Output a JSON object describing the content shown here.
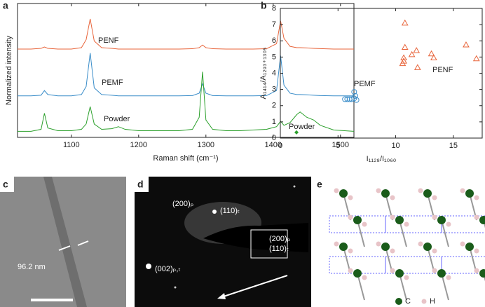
{
  "chart_data": [
    {
      "type": "line",
      "panel": "a",
      "xlabel": "Raman shift (cm⁻¹)",
      "ylabel": "Normalized intensity",
      "x": [
        1020,
        1040,
        1055,
        1060,
        1065,
        1080,
        1100,
        1115,
        1122,
        1128,
        1134,
        1145,
        1160,
        1170,
        1180,
        1200,
        1220,
        1240,
        1260,
        1280,
        1290,
        1295,
        1300,
        1310,
        1330,
        1350,
        1370,
        1390,
        1405,
        1411,
        1416,
        1425,
        1435,
        1440,
        1450,
        1460,
        1470,
        1490,
        1520
      ],
      "xlim": [
        1020,
        1520
      ],
      "xticks": [
        1100,
        1200,
        1300,
        1400,
        1500
      ],
      "ylim": [
        0,
        10
      ],
      "series": [
        {
          "name": "PENF",
          "color": "#e8643a",
          "values": [
            6.6,
            6.6,
            6.65,
            6.75,
            6.65,
            6.6,
            6.6,
            6.7,
            7.3,
            8.85,
            7.2,
            6.7,
            6.65,
            6.6,
            6.6,
            6.6,
            6.6,
            6.6,
            6.6,
            6.62,
            6.7,
            6.9,
            6.7,
            6.62,
            6.6,
            6.6,
            6.6,
            6.62,
            7.0,
            8.7,
            7.4,
            6.8,
            6.7,
            6.7,
            6.68,
            6.65,
            6.63,
            6.6,
            6.6
          ]
        },
        {
          "name": "PEMF",
          "color": "#3a8dc9",
          "values": [
            3.1,
            3.1,
            3.15,
            3.5,
            3.2,
            3.1,
            3.1,
            3.2,
            3.8,
            6.3,
            3.7,
            3.2,
            3.15,
            3.1,
            3.1,
            3.1,
            3.1,
            3.1,
            3.1,
            3.12,
            3.3,
            4.0,
            3.3,
            3.12,
            3.1,
            3.1,
            3.1,
            3.12,
            3.5,
            6.1,
            3.9,
            3.3,
            3.2,
            3.2,
            3.18,
            3.15,
            3.12,
            3.1,
            3.1
          ]
        },
        {
          "name": "Powder",
          "color": "#2ca02c",
          "values": [
            0.45,
            0.45,
            0.6,
            1.8,
            0.7,
            0.5,
            0.5,
            0.6,
            1.0,
            2.3,
            1.0,
            0.6,
            0.65,
            0.8,
            0.6,
            0.5,
            0.5,
            0.5,
            0.5,
            0.6,
            1.5,
            4.9,
            1.3,
            0.6,
            0.5,
            0.5,
            0.55,
            0.6,
            0.8,
            1.2,
            0.9,
            1.1,
            1.7,
            1.9,
            1.5,
            1.3,
            0.9,
            0.55,
            0.45
          ]
        }
      ]
    },
    {
      "type": "scatter",
      "panel": "b",
      "xlabel": "I₁₁₂₈/I₁₀₆₀",
      "ylabel": "A₁₄₁₄/A₁₂₉₃₊₁₃₀₅",
      "xlim": [
        0,
        17.5
      ],
      "xticks": [
        0,
        5,
        10,
        15
      ],
      "ylim": [
        0,
        8
      ],
      "yticks": [
        0,
        1,
        2,
        3,
        4,
        5,
        6,
        7,
        8
      ],
      "series": [
        {
          "name": "PENF",
          "color": "#e8643a",
          "marker": "triangle",
          "x": [
            10.8,
            10.8,
            10.7,
            10.6,
            10.7,
            11.4,
            11.8,
            11.9,
            13.1,
            13.3,
            16.1,
            17.0
          ],
          "values": [
            7.1,
            5.6,
            4.95,
            4.6,
            4.75,
            5.15,
            5.4,
            4.35,
            5.2,
            4.95,
            5.75,
            4.9
          ]
        },
        {
          "name": "PEMF",
          "color": "#3a8dc9",
          "marker": "circle",
          "x": [
            5.6,
            5.8,
            6.0,
            6.2,
            6.4,
            6.6,
            6.4,
            6.5
          ],
          "values": [
            2.4,
            2.4,
            2.4,
            2.4,
            2.45,
            2.35,
            2.85,
            2.6
          ]
        },
        {
          "name": "Powder",
          "color": "#2ca02c",
          "marker": "diamond",
          "x": [
            1.4
          ],
          "values": [
            0.35
          ]
        }
      ]
    }
  ],
  "panels": {
    "c": {
      "letter": "c",
      "width_label": "96.2 nm"
    },
    "d": {
      "letter": "d",
      "spot1": "(200)ₚ",
      "spot2": "(110)ₜ",
      "spot3": "(002)ₚ,ₜ",
      "inset1": "(200)ₚ",
      "inset2": "(110)ₜ"
    },
    "e": {
      "letter": "e",
      "carbon": "C",
      "hydrogen": "H"
    }
  }
}
